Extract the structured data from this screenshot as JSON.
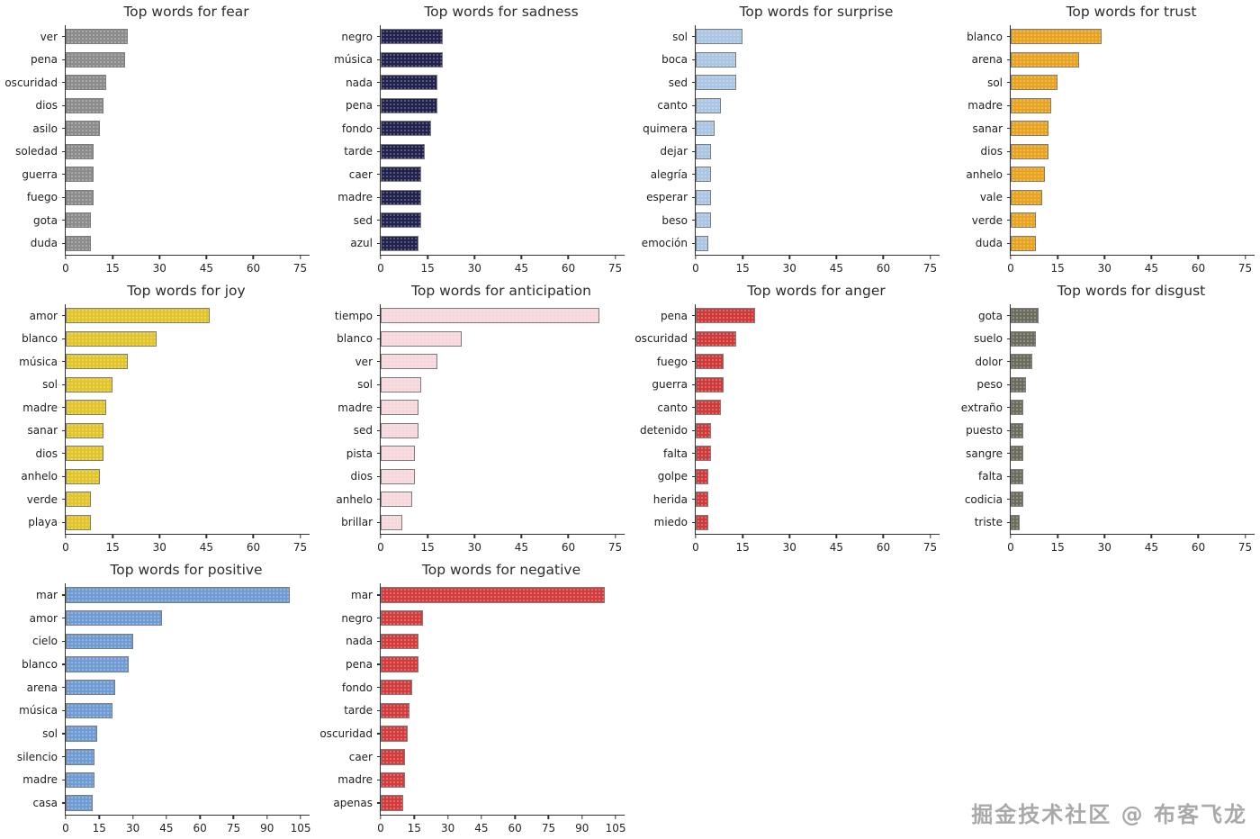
{
  "watermark": "掘金技术社区 @ 布客飞龙",
  "chart_data": [
    {
      "type": "bar",
      "orientation": "horizontal",
      "id": "fear",
      "title": "Top words for fear",
      "xlabel": "",
      "ylabel": "",
      "color": "#8c8c8c",
      "ticks": [
        0,
        15,
        30,
        45,
        60,
        75
      ],
      "xlim": [
        0,
        78
      ],
      "categories": [
        "ver",
        "pena",
        "oscuridad",
        "dios",
        "asilo",
        "soledad",
        "guerra",
        "fuego",
        "gota",
        "duda"
      ],
      "values": [
        20,
        19,
        13,
        12,
        11,
        9,
        9,
        9,
        8,
        8
      ]
    },
    {
      "type": "bar",
      "orientation": "horizontal",
      "id": "sadness",
      "title": "Top words for sadness",
      "xlabel": "",
      "ylabel": "",
      "color": "#21214d",
      "ticks": [
        0,
        15,
        30,
        45,
        60,
        75
      ],
      "xlim": [
        0,
        78
      ],
      "categories": [
        "negro",
        "música",
        "nada",
        "pena",
        "fondo",
        "tarde",
        "caer",
        "madre",
        "sed",
        "azul"
      ],
      "values": [
        20,
        20,
        18,
        18,
        16,
        14,
        13,
        13,
        13,
        12
      ]
    },
    {
      "type": "bar",
      "orientation": "horizontal",
      "id": "surprise",
      "title": "Top words for surprise",
      "xlabel": "",
      "ylabel": "",
      "color": "#aac6e3",
      "ticks": [
        0,
        15,
        30,
        45,
        60,
        75
      ],
      "xlim": [
        0,
        78
      ],
      "categories": [
        "sol",
        "boca",
        "sed",
        "canto",
        "quimera",
        "dejar",
        "alegría",
        "esperar",
        "beso",
        "emoción"
      ],
      "values": [
        15,
        13,
        13,
        8,
        6,
        5,
        5,
        5,
        5,
        4
      ]
    },
    {
      "type": "bar",
      "orientation": "horizontal",
      "id": "trust",
      "title": "Top words for trust",
      "xlabel": "",
      "ylabel": "",
      "color": "#e8a322",
      "ticks": [
        0,
        15,
        30,
        45,
        60,
        75
      ],
      "xlim": [
        0,
        78
      ],
      "categories": [
        "blanco",
        "arena",
        "sol",
        "madre",
        "sanar",
        "dios",
        "anhelo",
        "vale",
        "verde",
        "duda"
      ],
      "values": [
        29,
        22,
        15,
        13,
        12,
        12,
        11,
        10,
        8,
        8
      ]
    },
    {
      "type": "bar",
      "orientation": "horizontal",
      "id": "joy",
      "title": "Top words for joy",
      "xlabel": "",
      "ylabel": "",
      "color": "#e2c52d",
      "ticks": [
        0,
        15,
        30,
        45,
        60,
        75
      ],
      "xlim": [
        0,
        78
      ],
      "categories": [
        "amor",
        "blanco",
        "música",
        "sol",
        "madre",
        "sanar",
        "dios",
        "anhelo",
        "verde",
        "playa"
      ],
      "values": [
        46,
        29,
        20,
        15,
        13,
        12,
        12,
        11,
        8,
        8
      ]
    },
    {
      "type": "bar",
      "orientation": "horizontal",
      "id": "anticipation",
      "title": "Top words for anticipation",
      "xlabel": "",
      "ylabel": "",
      "color": "#f6d7dc",
      "ticks": [
        0,
        15,
        30,
        45,
        60,
        75
      ],
      "xlim": [
        0,
        78
      ],
      "categories": [
        "tiempo",
        "blanco",
        "ver",
        "sol",
        "madre",
        "sed",
        "pista",
        "dios",
        "anhelo",
        "brillar"
      ],
      "values": [
        70,
        26,
        18,
        13,
        12,
        12,
        11,
        11,
        10,
        7
      ]
    },
    {
      "type": "bar",
      "orientation": "horizontal",
      "id": "anger",
      "title": "Top words for anger",
      "xlabel": "",
      "ylabel": "",
      "color": "#ce3a3a",
      "ticks": [
        0,
        15,
        30,
        45,
        60,
        75
      ],
      "xlim": [
        0,
        78
      ],
      "categories": [
        "pena",
        "oscuridad",
        "fuego",
        "guerra",
        "canto",
        "detenido",
        "falta",
        "golpe",
        "herida",
        "miedo"
      ],
      "values": [
        19,
        13,
        9,
        9,
        8,
        5,
        5,
        4,
        4,
        4
      ]
    },
    {
      "type": "bar",
      "orientation": "horizontal",
      "id": "disgust",
      "title": "Top words for disgust",
      "xlabel": "",
      "ylabel": "",
      "color": "#6d6d5d",
      "ticks": [
        0,
        15,
        30,
        45,
        60,
        75
      ],
      "xlim": [
        0,
        78
      ],
      "categories": [
        "gota",
        "suelo",
        "dolor",
        "peso",
        "extraño",
        "puesto",
        "sangre",
        "falta",
        "codicia",
        "triste"
      ],
      "values": [
        9,
        8,
        7,
        5,
        4,
        4,
        4,
        4,
        4,
        3
      ]
    },
    {
      "type": "bar",
      "orientation": "horizontal",
      "id": "positive",
      "title": "Top words for positive",
      "xlabel": "",
      "ylabel": "",
      "color": "#6f9bd3",
      "ticks": [
        0,
        15,
        30,
        45,
        60,
        75,
        90,
        105
      ],
      "xlim": [
        0,
        109
      ],
      "categories": [
        "mar",
        "amor",
        "cielo",
        "blanco",
        "arena",
        "música",
        "sol",
        "silencio",
        "madre",
        "casa"
      ],
      "values": [
        100,
        43,
        30,
        28,
        22,
        21,
        14,
        13,
        13,
        12
      ]
    },
    {
      "type": "bar",
      "orientation": "horizontal",
      "id": "negative",
      "title": "Top words for negative",
      "xlabel": "",
      "ylabel": "",
      "color": "#d23c3c",
      "ticks": [
        0,
        15,
        30,
        45,
        60,
        75,
        90,
        105
      ],
      "xlim": [
        0,
        109
      ],
      "categories": [
        "mar",
        "negro",
        "nada",
        "pena",
        "fondo",
        "tarde",
        "oscuridad",
        "caer",
        "madre",
        "apenas"
      ],
      "values": [
        100,
        19,
        17,
        17,
        14,
        13,
        12,
        11,
        11,
        10
      ]
    }
  ]
}
